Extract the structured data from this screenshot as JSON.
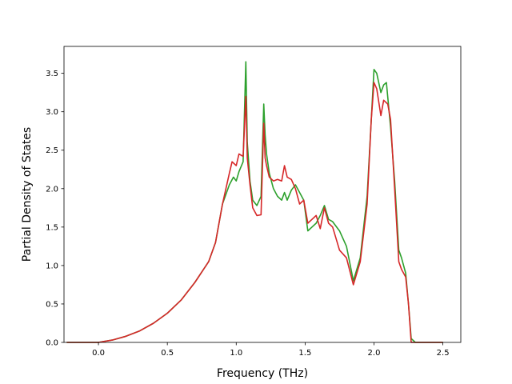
{
  "chart_data": {
    "type": "line",
    "title": "",
    "xlabel": "Frequency (THz)",
    "ylabel": "Partial Density of States",
    "xlim": [
      -0.25,
      2.63
    ],
    "ylim": [
      0.0,
      3.85
    ],
    "xticks": [
      "0.0",
      "0.5",
      "1.0",
      "1.5",
      "2.0",
      "2.5"
    ],
    "yticks": [
      "0.0",
      "0.5",
      "1.0",
      "1.5",
      "2.0",
      "2.5",
      "3.0",
      "3.5"
    ],
    "grid": false,
    "legend": "none",
    "series": [
      {
        "color": "#2ca02c",
        "x": [
          -0.23,
          0.0,
          0.1,
          0.2,
          0.3,
          0.4,
          0.5,
          0.6,
          0.7,
          0.8,
          0.85,
          0.9,
          0.95,
          0.98,
          1.0,
          1.02,
          1.05,
          1.07,
          1.08,
          1.1,
          1.12,
          1.15,
          1.18,
          1.2,
          1.21,
          1.22,
          1.24,
          1.27,
          1.3,
          1.33,
          1.35,
          1.37,
          1.4,
          1.43,
          1.46,
          1.49,
          1.52,
          1.55,
          1.58,
          1.61,
          1.64,
          1.67,
          1.7,
          1.75,
          1.8,
          1.85,
          1.9,
          1.95,
          1.98,
          2.0,
          2.02,
          2.05,
          2.07,
          2.09,
          2.12,
          2.15,
          2.18,
          2.2,
          2.23,
          2.25,
          2.27,
          2.3,
          2.35,
          2.4,
          2.45,
          2.5
        ],
        "values": [
          0.0,
          0.0,
          0.03,
          0.08,
          0.15,
          0.25,
          0.38,
          0.55,
          0.78,
          1.05,
          1.3,
          1.8,
          2.05,
          2.15,
          2.1,
          2.22,
          2.35,
          3.65,
          2.6,
          2.1,
          1.85,
          1.78,
          1.9,
          3.1,
          2.7,
          2.45,
          2.2,
          2.0,
          1.9,
          1.85,
          1.95,
          1.85,
          1.98,
          2.05,
          1.95,
          1.85,
          1.45,
          1.5,
          1.55,
          1.65,
          1.78,
          1.6,
          1.57,
          1.45,
          1.25,
          0.8,
          1.1,
          1.9,
          2.9,
          3.55,
          3.5,
          3.25,
          3.35,
          3.38,
          2.8,
          2.1,
          1.2,
          1.1,
          0.9,
          0.5,
          0.05,
          0.0,
          0.0,
          0.0,
          0.0,
          0.0
        ]
      },
      {
        "color": "#d62728",
        "x": [
          -0.23,
          0.0,
          0.1,
          0.2,
          0.3,
          0.4,
          0.5,
          0.6,
          0.7,
          0.8,
          0.85,
          0.9,
          0.95,
          0.97,
          1.0,
          1.02,
          1.05,
          1.07,
          1.08,
          1.1,
          1.12,
          1.15,
          1.18,
          1.2,
          1.21,
          1.22,
          1.24,
          1.27,
          1.3,
          1.33,
          1.35,
          1.37,
          1.4,
          1.43,
          1.46,
          1.49,
          1.52,
          1.55,
          1.58,
          1.61,
          1.64,
          1.67,
          1.7,
          1.75,
          1.8,
          1.85,
          1.9,
          1.95,
          1.98,
          2.0,
          2.02,
          2.05,
          2.07,
          2.1,
          2.12,
          2.15,
          2.18,
          2.2,
          2.23,
          2.25,
          2.27,
          2.3,
          2.35,
          2.4,
          2.45,
          2.5
        ],
        "values": [
          0.0,
          0.0,
          0.03,
          0.08,
          0.15,
          0.25,
          0.38,
          0.55,
          0.78,
          1.05,
          1.3,
          1.8,
          2.2,
          2.35,
          2.3,
          2.45,
          2.42,
          3.2,
          2.4,
          2.05,
          1.75,
          1.65,
          1.66,
          2.85,
          2.4,
          2.3,
          2.15,
          2.1,
          2.12,
          2.1,
          2.3,
          2.15,
          2.12,
          2.0,
          1.8,
          1.85,
          1.55,
          1.6,
          1.65,
          1.48,
          1.75,
          1.55,
          1.5,
          1.2,
          1.1,
          0.75,
          1.05,
          1.8,
          2.9,
          3.38,
          3.3,
          2.95,
          3.15,
          3.1,
          2.9,
          2.0,
          1.05,
          0.95,
          0.85,
          0.5,
          0.0,
          0.0,
          0.0,
          0.0,
          0.0,
          0.0
        ]
      }
    ]
  }
}
